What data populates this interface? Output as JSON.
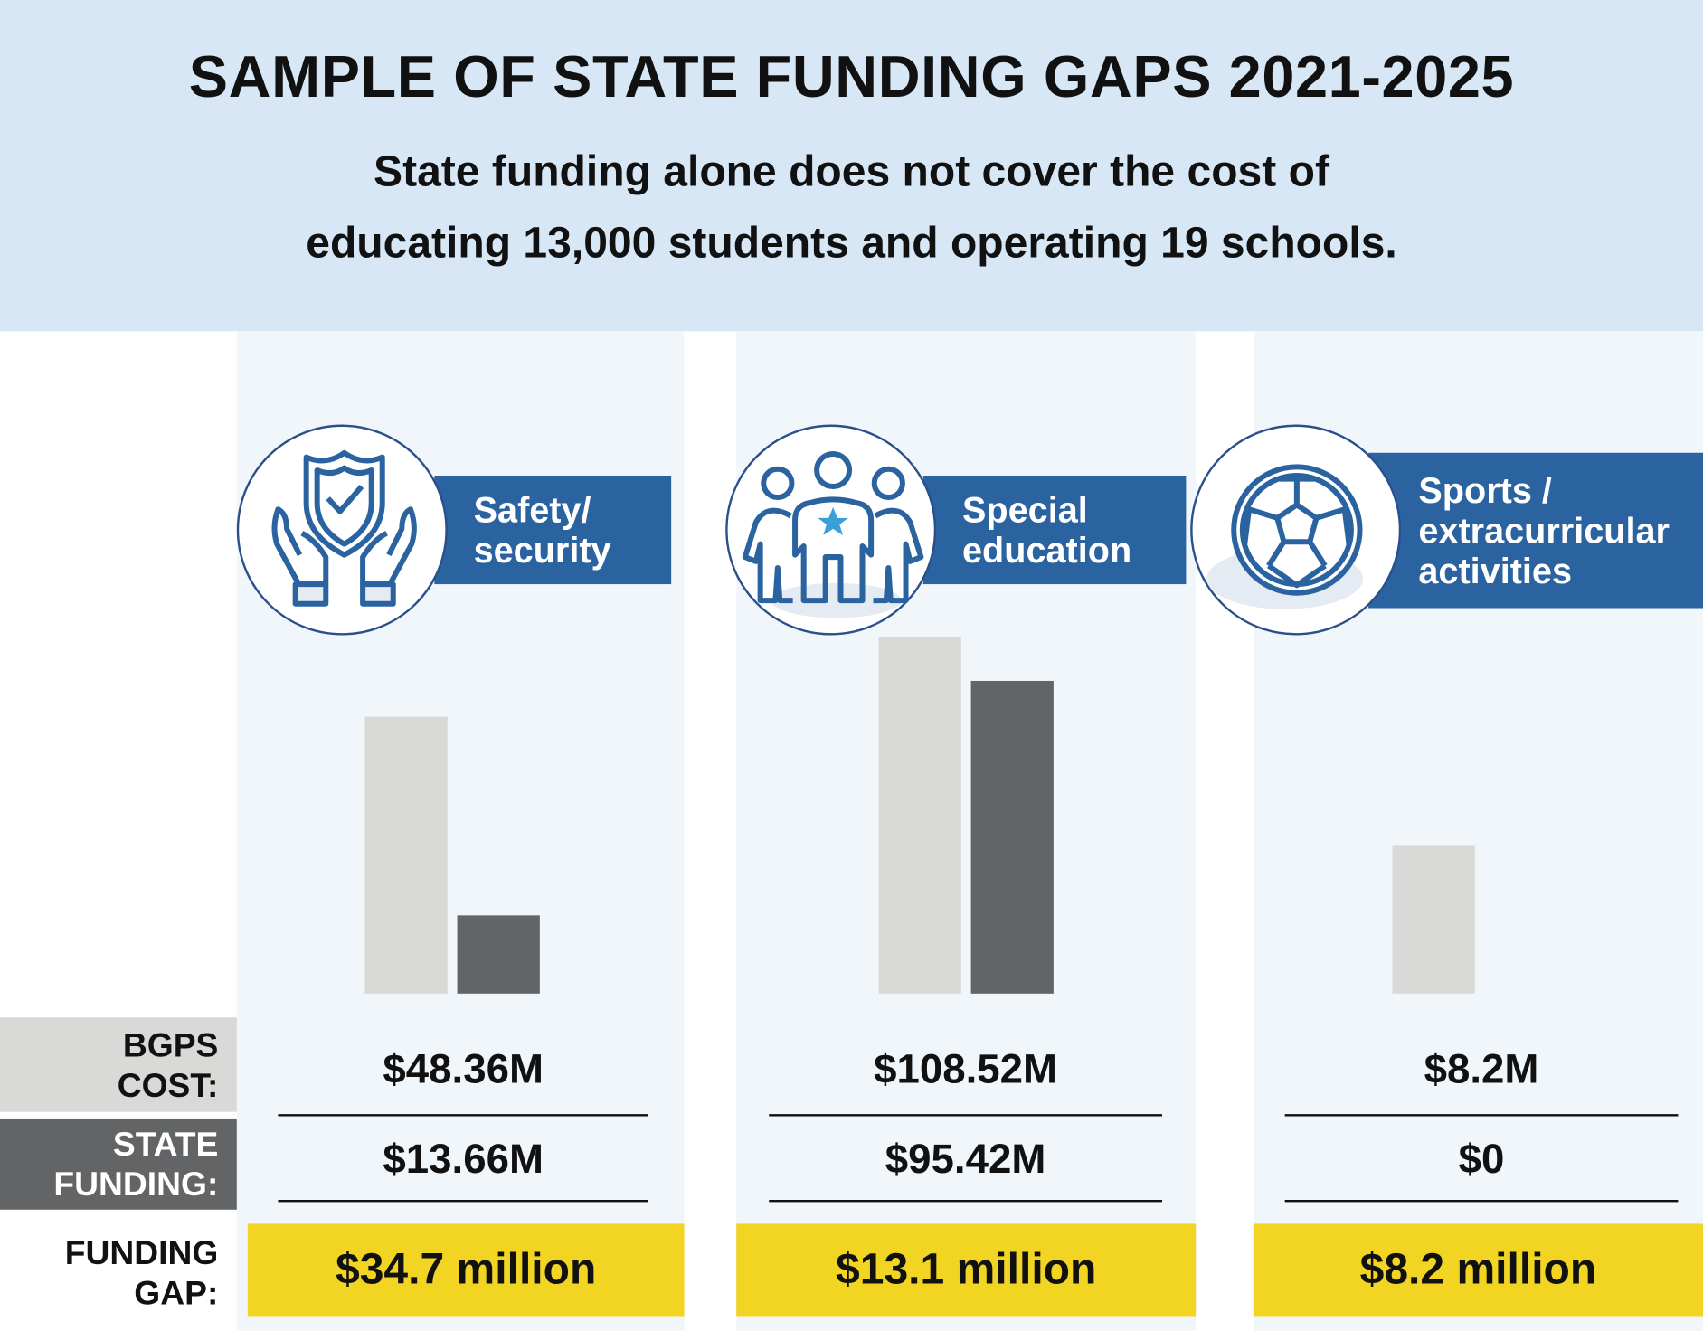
{
  "header": {
    "title": "SAMPLE OF STATE FUNDING GAPS 2021-2025",
    "subtitle_line1": "State funding alone does not cover the cost of",
    "subtitle_line2": "educating 13,000 students and operating 19 schools."
  },
  "row_labels": {
    "cost_line1": "BGPS",
    "cost_line2": "COST:",
    "state_line1": "STATE",
    "state_line2": "FUNDING:",
    "gap_line1": "FUNDING",
    "gap_line2": "GAP:"
  },
  "colors": {
    "header_bg": "#d7e7f5",
    "column_bg": "#f1f6fb",
    "cost": "#d9d9d7",
    "state": "#636466",
    "band": "#2a63a0",
    "gap": "#f2d422"
  },
  "chart_data": {
    "type": "bar",
    "title": "SAMPLE OF STATE FUNDING GAPS 2021-2025",
    "categories": [
      "Safety/ security",
      "Special education",
      "Sports / extracurricular activities"
    ],
    "series": [
      {
        "name": "BGPS COST",
        "values": [
          48.36,
          108.52,
          8.2
        ]
      },
      {
        "name": "STATE FUNDING",
        "values": [
          13.66,
          95.42,
          0
        ]
      }
    ],
    "funding_gap": [
      34.7,
      13.1,
      8.2
    ],
    "units": "million USD",
    "note": "each category drawn on its own scale"
  },
  "categories": [
    {
      "label_line1": "Safety/",
      "label_line2": "security",
      "label_line3": "",
      "icon": "shield-hands-icon",
      "cost": "$48.36M",
      "state": "$13.66M",
      "gap": "$34.7 million"
    },
    {
      "label_line1": "Special",
      "label_line2": "education",
      "label_line3": "",
      "icon": "people-star-icon",
      "cost": "$108.52M",
      "state": "$95.42M",
      "gap": "$13.1 million"
    },
    {
      "label_line1": "Sports /",
      "label_line2": "extracurricular",
      "label_line3": "activities",
      "icon": "soccer-ball-icon",
      "cost": "$8.2M",
      "state": "$0",
      "gap": "$8.2 million"
    }
  ]
}
